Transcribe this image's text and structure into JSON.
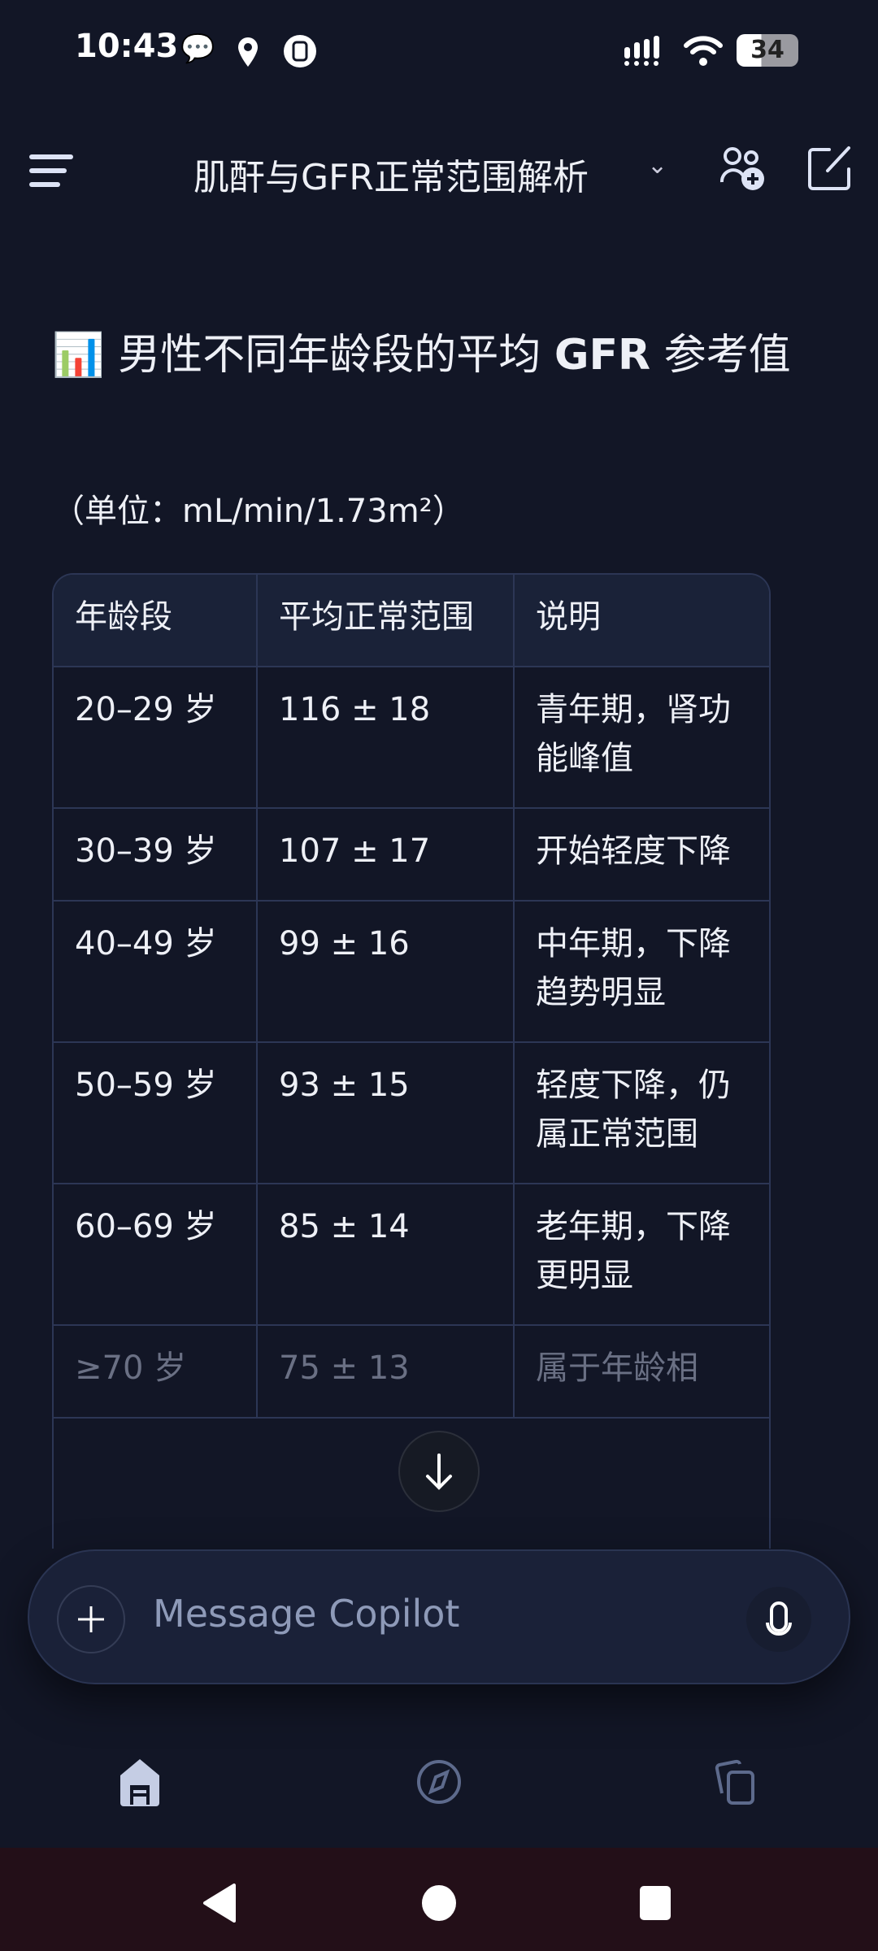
{
  "status_bar": {
    "time": "10:43",
    "battery": "34"
  },
  "header": {
    "title": "肌酐与GFR正常范围解析"
  },
  "content": {
    "heading_emoji": "📊",
    "heading_pre": "男性不同年龄段的平均 ",
    "heading_bold": "GFR",
    "heading_post": " 参考值",
    "unit": "（单位：mL/min/1.73m²）",
    "table": {
      "headers": [
        "年龄段",
        "平均正常范围",
        "说明"
      ],
      "rows": [
        [
          "20–29 岁",
          "116 ± 18",
          "青年期，肾功能峰值"
        ],
        [
          "30–39 岁",
          "107 ± 17",
          "开始轻度下降"
        ],
        [
          "40–49 岁",
          "99 ± 16",
          "中年期，下降趋势明显"
        ],
        [
          "50–59 岁",
          "93 ± 15",
          "轻度下降，仍属正常范围"
        ],
        [
          "60–69 岁",
          "85 ± 14",
          "老年期，下降更明显"
        ],
        [
          "≥70 岁",
          "75 ± 13",
          "属于年龄相"
        ]
      ]
    }
  },
  "composer": {
    "placeholder": "Message Copilot"
  },
  "bottom_nav": {
    "items": [
      "home-icon",
      "discover-icon",
      "pages-icon"
    ],
    "active": "home-icon"
  }
}
